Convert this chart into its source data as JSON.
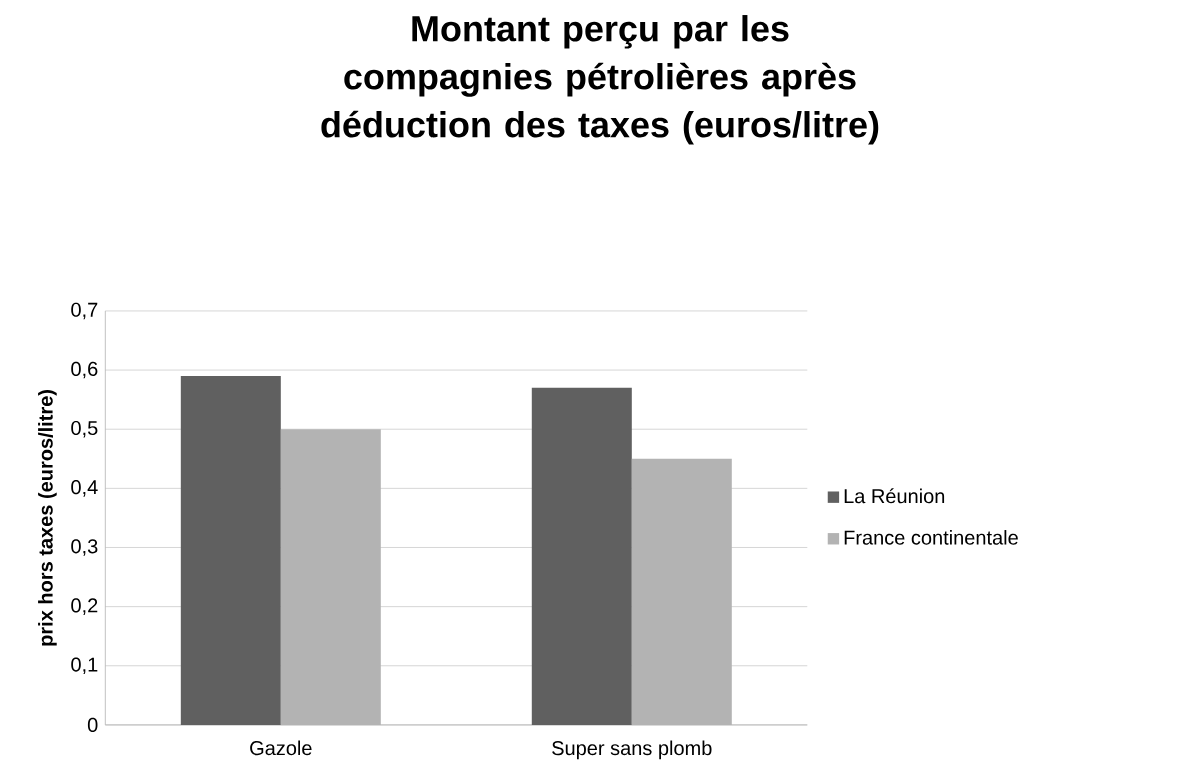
{
  "chart_data": {
    "type": "bar",
    "title": "Montant perçu par les compagnies pétrolières après déduction des taxes (euros/litre)",
    "ylabel": "prix hors taxes (euros/litre)",
    "categories": [
      "Gazole",
      "Super sans plomb"
    ],
    "series": [
      {
        "name": "La Réunion",
        "color": "#606060",
        "values": [
          0.59,
          0.57
        ]
      },
      {
        "name": "France continentale",
        "color": "#b3b3b3",
        "values": [
          0.5,
          0.45
        ]
      }
    ],
    "ylim": [
      0,
      0.7
    ],
    "yticks": [
      {
        "value": 0,
        "label": "0"
      },
      {
        "value": 0.1,
        "label": "0,1"
      },
      {
        "value": 0.2,
        "label": "0,2"
      },
      {
        "value": 0.3,
        "label": "0,3"
      },
      {
        "value": 0.4,
        "label": "0,4"
      },
      {
        "value": 0.5,
        "label": "0,5"
      },
      {
        "value": 0.6,
        "label": "0,6"
      },
      {
        "value": 0.7,
        "label": "0,7"
      }
    ],
    "grid": "y",
    "legend": "right"
  }
}
